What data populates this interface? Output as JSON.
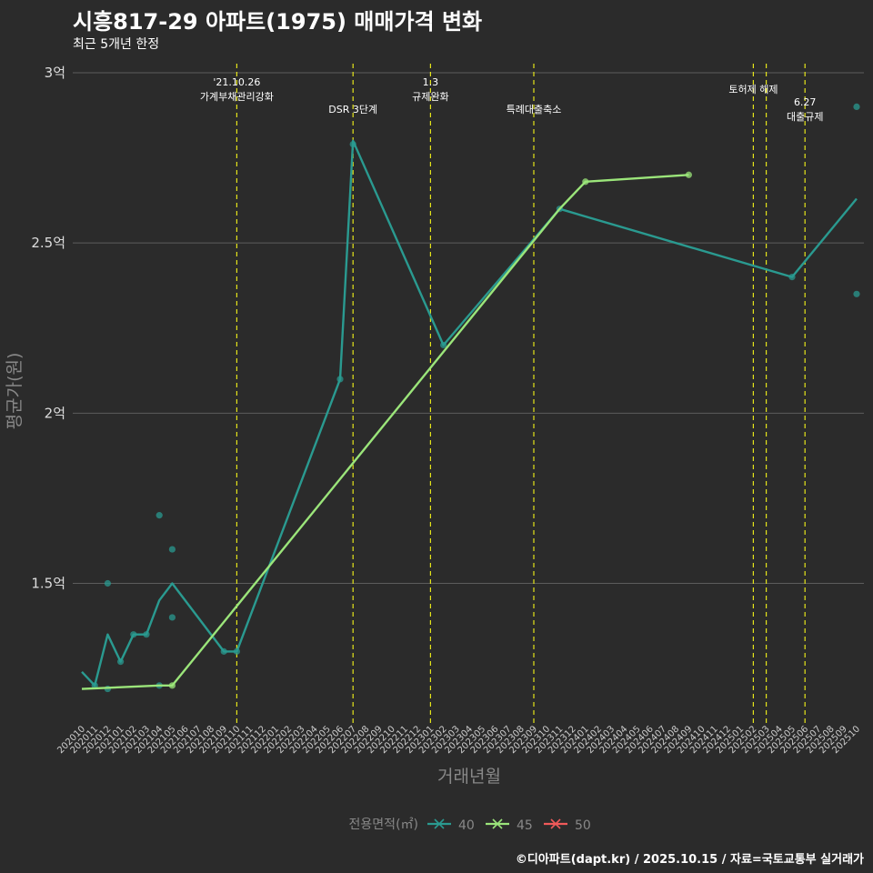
{
  "title": "시흥817-29 아파트(1975) 매매가격 변화",
  "subtitle": "최근 5개년 한정",
  "caption": "©디아파트(dapt.kr) / 2025.10.15 / 자료=국토교통부 실거래가",
  "chart_data": {
    "type": "line",
    "xlabel": "거래년월",
    "ylabel": "평균가(원)",
    "yticks": [
      {
        "value": 1.5,
        "label": "1.5억"
      },
      {
        "value": 2.0,
        "label": "2억"
      },
      {
        "value": 2.5,
        "label": "2.5억"
      },
      {
        "value": 3.0,
        "label": "3억"
      }
    ],
    "ylim": [
      1.09,
      3.04
    ],
    "months": [
      "202010",
      "202011",
      "202012",
      "202101",
      "202102",
      "202103",
      "202104",
      "202105",
      "202106",
      "202107",
      "202108",
      "202109",
      "202110",
      "202111",
      "202112",
      "202201",
      "202202",
      "202203",
      "202204",
      "202205",
      "202206",
      "202207",
      "202208",
      "202209",
      "202210",
      "202211",
      "202212",
      "202301",
      "202302",
      "202303",
      "202304",
      "202305",
      "202306",
      "202307",
      "202308",
      "202309",
      "202310",
      "202311",
      "202312",
      "202401",
      "202402",
      "202403",
      "202404",
      "202405",
      "202406",
      "202407",
      "202408",
      "202409",
      "202410",
      "202411",
      "202412",
      "202501",
      "202502",
      "202503",
      "202504",
      "202505",
      "202506",
      "202507",
      "202508",
      "202509",
      "202510"
    ],
    "series": [
      {
        "name": "40",
        "color": "#2a9a90",
        "line": [
          [
            "202010",
            1.24
          ],
          [
            "202011",
            1.2
          ],
          [
            "202012",
            1.35
          ],
          [
            "202101",
            1.27
          ],
          [
            "202102",
            1.35
          ],
          [
            "202103",
            1.35
          ],
          [
            "202104",
            1.45
          ],
          [
            "202105",
            1.5
          ],
          [
            "202109",
            1.3
          ],
          [
            "202110",
            1.3
          ],
          [
            "202206",
            2.1
          ],
          [
            "202207",
            2.8
          ],
          [
            "202302",
            2.2
          ],
          [
            "202311",
            2.6
          ],
          [
            "202505",
            2.4
          ],
          [
            "202510",
            2.63
          ]
        ],
        "points": [
          [
            "202011",
            1.2
          ],
          [
            "202012",
            1.5
          ],
          [
            "202012",
            1.19
          ],
          [
            "202101",
            1.27
          ],
          [
            "202102",
            1.35
          ],
          [
            "202103",
            1.35
          ],
          [
            "202104",
            1.7
          ],
          [
            "202104",
            1.2
          ],
          [
            "202105",
            1.6
          ],
          [
            "202105",
            1.4
          ],
          [
            "202109",
            1.3
          ],
          [
            "202110",
            1.3
          ],
          [
            "202206",
            2.1
          ],
          [
            "202207",
            2.79
          ],
          [
            "202302",
            2.2
          ],
          [
            "202311",
            2.6
          ],
          [
            "202505",
            2.4
          ],
          [
            "202510",
            2.9
          ],
          [
            "202510",
            2.35
          ]
        ]
      },
      {
        "name": "45",
        "color": "#9be57a",
        "line": [
          [
            "202010",
            1.19
          ],
          [
            "202104",
            1.2
          ],
          [
            "202105",
            1.2
          ],
          [
            "202311",
            2.6
          ],
          [
            "202401",
            2.68
          ],
          [
            "202409",
            2.7
          ]
        ],
        "points": [
          [
            "202105",
            1.2
          ],
          [
            "202401",
            2.68
          ],
          [
            "202409",
            2.7
          ]
        ]
      },
      {
        "name": "50",
        "color": "#f05a5a",
        "line": [],
        "points": []
      }
    ],
    "events": [
      {
        "month": "202110",
        "lines": [
          "'21.10.26",
          "가계부채관리강화"
        ],
        "row": 1
      },
      {
        "month": "202207",
        "lines": [
          "DSR 3단계"
        ],
        "row": 2
      },
      {
        "month": "202301",
        "lines": [
          "1.3",
          "규제완화"
        ],
        "row": 1
      },
      {
        "month": "202309",
        "lines": [
          "특례대출축소"
        ],
        "row": 2
      },
      {
        "month": "202502",
        "lines": [
          "토허제 해제"
        ],
        "row": 1
      },
      {
        "month": "202503",
        "lines": [],
        "row": 1
      },
      {
        "month": "202506",
        "lines": [
          "6.27",
          "대출규제"
        ],
        "row": 1
      }
    ],
    "event_color": "#e5e51a",
    "legend": {
      "title": "전용면적(㎡)",
      "items": [
        "40",
        "45",
        "50"
      ],
      "position": "bottom"
    },
    "grid": true
  }
}
